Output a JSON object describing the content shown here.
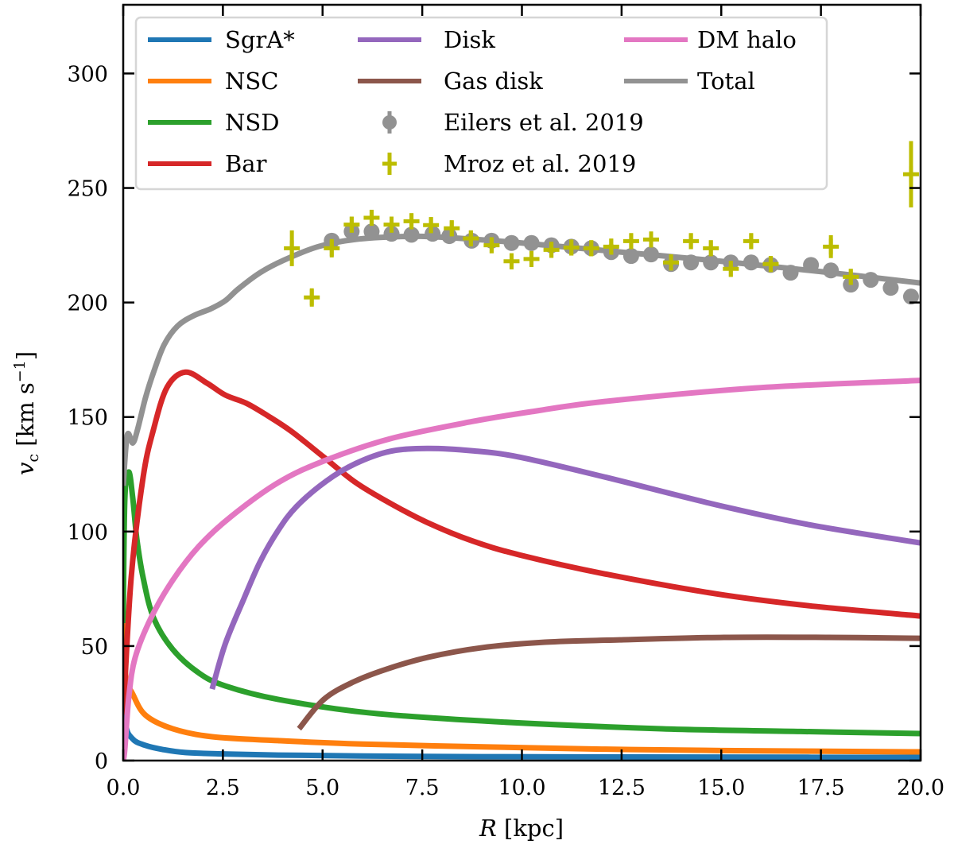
{
  "chart_data": {
    "type": "line",
    "title": "",
    "xlabel": "R [kpc]",
    "xlabel_parts": {
      "var": "R",
      "unit": " [kpc]"
    },
    "ylabel": "v_c [km s^-1]",
    "ylabel_parts": {
      "var": "v",
      "sub": "c",
      "unit_pre": " [km s",
      "sup": "−1",
      "unit_post": "]"
    },
    "xlim": [
      0,
      20
    ],
    "ylim": [
      0,
      330
    ],
    "xticks": [
      0,
      2.5,
      5,
      7.5,
      10,
      12.5,
      15,
      17.5,
      20
    ],
    "xtick_labels": [
      "0.0",
      "2.5",
      "5.0",
      "7.5",
      "10.0",
      "12.5",
      "15.0",
      "17.5",
      "20.0"
    ],
    "yticks": [
      0,
      50,
      100,
      150,
      200,
      250,
      300
    ],
    "ytick_labels": [
      "0",
      "50",
      "100",
      "150",
      "200",
      "250",
      "300"
    ],
    "grid": false,
    "legend_position": "upper-left",
    "legend_columns": 3,
    "series": [
      {
        "name": "SgrA*",
        "color": "#1f77b4",
        "style": "line",
        "x": [
          0.01,
          0.06,
          0.24,
          0.56,
          1.0,
          1.56,
          2.5,
          3.89,
          6,
          9,
          12,
          15,
          20
        ],
        "y": [
          40,
          16.3,
          9.4,
          6.6,
          4.8,
          3.5,
          2.9,
          2.4,
          2.0,
          1.7,
          1.6,
          1.5,
          1.4
        ]
      },
      {
        "name": "NSC",
        "color": "#ff7f0e",
        "style": "line",
        "x": [
          0.01,
          0.06,
          0.24,
          0.56,
          1.24,
          2.23,
          3.89,
          6,
          9.3,
          12,
          15,
          20
        ],
        "y": [
          60,
          37,
          29,
          19.8,
          13.9,
          10.4,
          8.7,
          7.2,
          5.9,
          5.0,
          4.4,
          3.8
        ]
      },
      {
        "name": "NSD",
        "color": "#2ca02c",
        "style": "line",
        "x": [
          0.0,
          0.04,
          0.14,
          0.24,
          0.34,
          0.5,
          0.76,
          1.24,
          1.9,
          2.56,
          3.89,
          6.19,
          9.32,
          13.5,
          17,
          20
        ],
        "y": [
          60,
          114,
          126,
          114.5,
          97,
          79.8,
          62.4,
          48.6,
          38.2,
          32.6,
          26.7,
          20.8,
          17,
          13.9,
          12.7,
          11.8
        ]
      },
      {
        "name": "Bar",
        "color": "#d62728",
        "style": "line",
        "x": [
          0.0,
          0.2,
          0.5,
          0.76,
          1.1,
          1.56,
          2.1,
          2.56,
          3.09,
          3.63,
          4.23,
          5.03,
          5.83,
          6.69,
          7.62,
          8.74,
          9.94,
          12.08,
          14.87,
          17.2,
          20
        ],
        "y": [
          20,
          80,
          123.8,
          144.6,
          163,
          169.6,
          164.8,
          159.6,
          156,
          150.5,
          143.6,
          132.5,
          121.4,
          112.4,
          104,
          96,
          89.8,
          81.5,
          72.8,
          67.6,
          63.1
        ]
      },
      {
        "name": "Disk",
        "color": "#9467bd",
        "style": "line",
        "x": [
          2.23,
          2.56,
          3.03,
          3.43,
          3.89,
          4.35,
          5.09,
          5.83,
          6.69,
          7.62,
          8.74,
          9.94,
          12.08,
          14.87,
          17.2,
          20
        ],
        "y": [
          31.2,
          51,
          70.8,
          86.7,
          100.6,
          111,
          122,
          129.7,
          135,
          136.3,
          135.3,
          132.5,
          123.8,
          111.7,
          103,
          95
        ]
      },
      {
        "name": "Gas disk",
        "color": "#8c564b",
        "style": "line",
        "x": [
          4.41,
          5.03,
          5.77,
          6.6,
          7.64,
          9.0,
          10.58,
          12.45,
          15.07,
          17.68,
          20
        ],
        "y": [
          13.9,
          26.7,
          34.3,
          39.9,
          45.1,
          49.3,
          51.7,
          52.7,
          53.8,
          53.8,
          53.4
        ]
      },
      {
        "name": "DM halo",
        "color": "#e377c2",
        "style": "line",
        "x": [
          0.0,
          0.04,
          0.14,
          0.3,
          0.7,
          1.24,
          1.9,
          2.7,
          3.89,
          5.03,
          6.69,
          8.74,
          10.34,
          12.08,
          15.87,
          20
        ],
        "y": [
          0,
          4.9,
          27.7,
          45,
          62.4,
          78.7,
          93.6,
          106.5,
          121.4,
          130.8,
          140.5,
          148,
          152.6,
          156.8,
          162.7,
          166
        ]
      },
      {
        "name": "Total",
        "color": "#929292",
        "style": "line",
        "x": [
          0.0,
          0.1,
          0.24,
          0.36,
          0.56,
          0.77,
          1.03,
          1.36,
          1.76,
          2.2,
          2.56,
          2.89,
          3.43,
          4.03,
          4.89,
          5.8,
          7.0,
          8.0,
          10.0,
          12.5,
          15.0,
          17.5,
          20
        ],
        "y": [
          120,
          142,
          138.7,
          144.6,
          158.5,
          170,
          181.7,
          189.7,
          194.2,
          197.3,
          200.8,
          206,
          213,
          218.5,
          224.4,
          227.5,
          228.8,
          228.5,
          226,
          222,
          218,
          213.5,
          208.5
        ]
      },
      {
        "name": "Eilers et al. 2019",
        "color": "#929292",
        "style": "errorbar-circle",
        "x": [
          5.23,
          5.73,
          6.23,
          6.73,
          7.23,
          7.76,
          8.18,
          8.74,
          9.24,
          9.74,
          10.24,
          10.74,
          11.24,
          11.74,
          12.24,
          12.74,
          13.24,
          13.74,
          14.24,
          14.74,
          15.24,
          15.75,
          16.24,
          16.74,
          17.25,
          17.75,
          18.25,
          18.75,
          19.25,
          19.76
        ],
        "y": [
          227,
          231,
          231,
          230,
          229.6,
          230,
          229,
          227,
          227,
          226,
          226,
          225,
          224.4,
          223.7,
          222,
          220.3,
          221,
          216.8,
          217.5,
          217.5,
          217.5,
          217.5,
          216.4,
          213,
          216.4,
          214,
          207.8,
          209.9,
          206.4,
          202.6
        ],
        "yerr": [
          1.5,
          1.5,
          1.5,
          1.5,
          1.5,
          1.5,
          1.5,
          1.5,
          1.5,
          1.5,
          1.5,
          1.5,
          1.5,
          1.5,
          1.5,
          1.5,
          1.5,
          1.5,
          1.5,
          1.5,
          1.5,
          1.5,
          1.5,
          1.5,
          1.5,
          1.5,
          1.5,
          1.5,
          1.5,
          1.5
        ]
      },
      {
        "name": "Mroz et al. 2019",
        "color": "#bcbd00",
        "style": "errorbar-plus",
        "x": [
          4.23,
          4.73,
          5.23,
          5.73,
          6.23,
          6.73,
          7.23,
          7.72,
          8.24,
          8.72,
          9.24,
          9.74,
          10.24,
          10.74,
          11.24,
          11.74,
          12.24,
          12.74,
          13.24,
          13.74,
          14.24,
          14.74,
          15.24,
          15.75,
          16.24,
          17.75,
          18.25,
          19.76
        ],
        "y": [
          223.7,
          202.2,
          223.7,
          234,
          237,
          234,
          235.5,
          233.8,
          232.4,
          228,
          225,
          218,
          219,
          223,
          224,
          223.7,
          224.4,
          226.8,
          227.5,
          217.5,
          226.8,
          223.7,
          214.7,
          226.8,
          216.8,
          224.4,
          211.2,
          256
        ],
        "yerr": [
          7.8,
          4,
          4,
          3.5,
          3.5,
          3.5,
          3.5,
          3.5,
          3.5,
          3.5,
          3.5,
          3.5,
          3.5,
          3.5,
          3.5,
          3.5,
          3.5,
          3.5,
          3.5,
          3.5,
          3.5,
          3.5,
          3.5,
          3.5,
          3.5,
          5,
          3.5,
          14.5
        ]
      }
    ],
    "legend": [
      {
        "label": "SgrA*",
        "marker": "line",
        "color": "#1f77b4"
      },
      {
        "label": "NSC",
        "marker": "line",
        "color": "#ff7f0e"
      },
      {
        "label": "NSD",
        "marker": "line",
        "color": "#2ca02c"
      },
      {
        "label": "Bar",
        "marker": "line",
        "color": "#d62728"
      },
      {
        "label": "Disk",
        "marker": "line",
        "color": "#9467bd"
      },
      {
        "label": "Gas disk",
        "marker": "line",
        "color": "#8c564b"
      },
      {
        "label": "Eilers et al. 2019",
        "marker": "errorbar-circle",
        "color": "#929292"
      },
      {
        "label": "Mroz et al. 2019",
        "marker": "errorbar-plus",
        "color": "#bcbd00"
      },
      {
        "label": "DM halo",
        "marker": "line",
        "color": "#e377c2"
      },
      {
        "label": "Total",
        "marker": "line",
        "color": "#929292"
      }
    ]
  }
}
